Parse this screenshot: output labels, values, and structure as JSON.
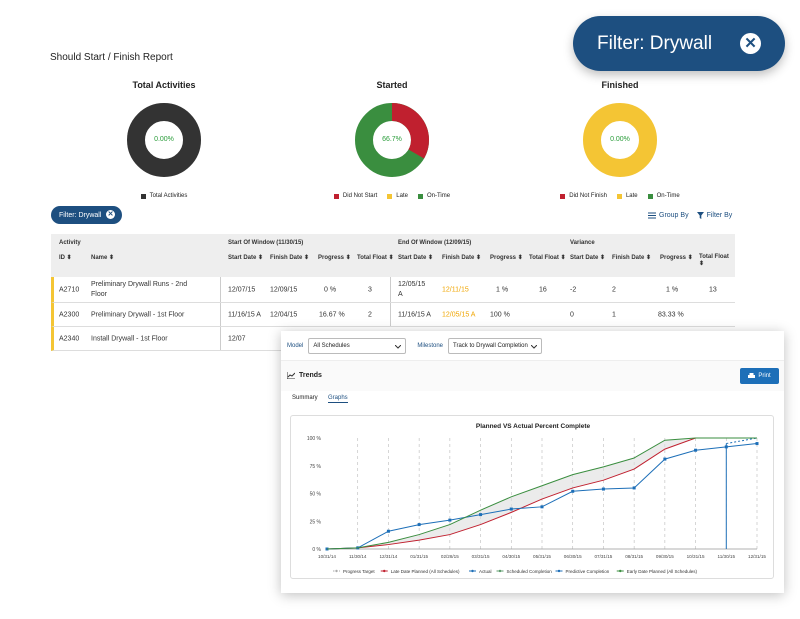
{
  "report": {
    "title": "Should Start / Finish Report"
  },
  "filter": {
    "big_label": "Filter: Drywall",
    "small_label": "Filter: Drywall",
    "close_glyph": "✕"
  },
  "donuts": {
    "total": {
      "title": "Total Activities",
      "center": "0.00%",
      "legend": [
        "Total Activities"
      ],
      "colors": [
        "#333333"
      ]
    },
    "started": {
      "title": "Started",
      "center": "66.7%",
      "legend": [
        "Did Not Start",
        "Late",
        "On-Time"
      ],
      "colors": [
        "#c0202f",
        "#f4c534",
        "#3a8e3f"
      ],
      "fractions": [
        0.333,
        0,
        0.667
      ]
    },
    "finished": {
      "title": "Finished",
      "center": "0.00%",
      "legend": [
        "Did Not Finish",
        "Late",
        "On-Time"
      ],
      "colors": [
        "#c0202f",
        "#f4c534",
        "#3a8e3f"
      ]
    }
  },
  "toolbar": {
    "group_by": "Group By",
    "filter_by": "Filter By"
  },
  "table": {
    "group_headers": {
      "activity": "Activity",
      "start_window": "Start Of Window (11/30/15)",
      "end_window": "End Of Window (12/09/15)",
      "variance": "Variance"
    },
    "columns": [
      "ID",
      "Name",
      "Start Date",
      "Finish Date",
      "Progress",
      "Total Float",
      "Start Date",
      "Finish Date",
      "Progress",
      "Total Float",
      "Start Date",
      "Finish Date",
      "Progress",
      "Total Float"
    ],
    "sort_glyph": "⬍",
    "rows": [
      {
        "id": "A2710",
        "name1": "Preliminary Drywall Runs - 2nd",
        "name2": "Floor",
        "s_start": "12/07/15",
        "s_finish": "12/09/15",
        "s_progress": "0 %",
        "s_float": "3",
        "e_start1": "12/05/15",
        "e_start2": "A",
        "e_finish": "12/11/15",
        "e_progress": "1 %",
        "e_float": "16",
        "v_start": "-2",
        "v_finish": "2",
        "v_progress": "1 %",
        "v_float": "13"
      },
      {
        "id": "A2300",
        "name1": "Preliminary Drywall - 1st Floor",
        "s_start": "11/16/15 A",
        "s_finish": "12/04/15",
        "s_progress": "16.67 %",
        "s_float": "2",
        "e_start1": "11/16/15 A",
        "e_finish": "12/05/15 A",
        "e_progress": "100 %",
        "e_float": "",
        "v_start": "0",
        "v_finish": "1",
        "v_progress": "83.33 %",
        "v_float": ""
      },
      {
        "id": "A2340",
        "name1": "Install Drywall - 1st Floor",
        "s_start": "12/07"
      }
    ]
  },
  "trends": {
    "model_label": "Model",
    "model_value": "All Schedules",
    "milestone_label": "Milestone",
    "milestone_value": "Track to Drywall Completion",
    "section_title": "Trends",
    "print_label": "Print",
    "tabs": [
      "Summary",
      "Graphs"
    ],
    "active_tab": "Graphs"
  },
  "chart_data": {
    "type": "line",
    "title": "Planned VS Actual Percent Complete",
    "x": [
      "10/31/14",
      "11/30/14",
      "12/31/14",
      "01/31/15",
      "02/28/15",
      "03/31/15",
      "04/30/15",
      "05/31/15",
      "06/30/15",
      "07/31/15",
      "08/31/15",
      "09/30/15",
      "10/31/15",
      "11/30/15",
      "12/31/15"
    ],
    "y_ticks": [
      "0 %",
      "25 %",
      "50 %",
      "75 %",
      "100 %"
    ],
    "ylim": [
      0,
      100
    ],
    "series": [
      {
        "name": "Progress Target",
        "color": "#aaaaaa",
        "values": [
          0,
          0,
          0,
          0,
          0,
          0,
          0,
          0,
          0,
          0,
          0,
          0,
          0,
          0,
          0
        ]
      },
      {
        "name": "Late Date Planned (All Schedules)",
        "color": "#c0202f",
        "values": [
          0,
          1,
          4,
          8,
          13,
          22,
          33,
          45,
          55,
          62,
          72,
          90,
          100,
          100,
          100
        ]
      },
      {
        "name": "Actual",
        "color": "#1d6fb8",
        "values": [
          0,
          1,
          16,
          22,
          26,
          31,
          36,
          38,
          52,
          54,
          55,
          81,
          89,
          92,
          95
        ]
      },
      {
        "name": "Scheduled Completion",
        "color": "#5a9a6a",
        "values": [
          null,
          null,
          null,
          null,
          null,
          null,
          null,
          null,
          null,
          null,
          null,
          null,
          null,
          null,
          100
        ]
      },
      {
        "name": "Predictive Completion",
        "color": "#1d6fb8",
        "values": [
          null,
          null,
          null,
          null,
          null,
          null,
          null,
          null,
          null,
          null,
          null,
          null,
          null,
          95,
          100
        ]
      },
      {
        "name": "Early Date Planned (All Schedules)",
        "color": "#3a8e3f",
        "values": [
          0,
          1,
          6,
          13,
          22,
          35,
          47,
          57,
          67,
          74,
          82,
          98,
          100,
          100,
          100
        ]
      }
    ]
  }
}
